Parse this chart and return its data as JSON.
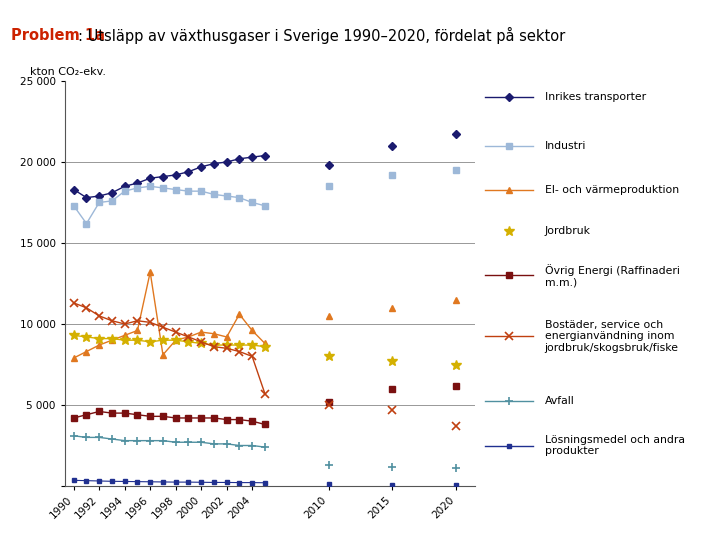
{
  "title_bold": "Problem 1a",
  "title_rest": ": Utsläpp av växthusgaser i Sverige 1990–2020, fördelat på sektor",
  "ylabel": "kton CO₂-ekv.",
  "ylim": [
    0,
    25000
  ],
  "yticks": [
    0,
    5000,
    10000,
    15000,
    20000,
    25000
  ],
  "hlines": [
    5000,
    10000,
    15000,
    20000
  ],
  "header_bg": "#dce9f5",
  "series": [
    {
      "name": "Inrikes transporter",
      "color": "#1a1a6e",
      "marker": "D",
      "markersize": 4,
      "linewidth": 1.0,
      "years_cont": [
        1990,
        1991,
        1992,
        1993,
        1994,
        1995,
        1996,
        1997,
        1998,
        1999,
        2000,
        2001,
        2002,
        2003,
        2004,
        2005
      ],
      "values_cont": [
        18300,
        17800,
        17900,
        18100,
        18500,
        18700,
        19000,
        19100,
        19200,
        19400,
        19700,
        19900,
        20000,
        20200,
        20300,
        20400
      ],
      "years_disc": [
        2010,
        2015,
        2020
      ],
      "values_disc": [
        19800,
        21000,
        21700
      ]
    },
    {
      "name": "Industri",
      "color": "#9db8d8",
      "marker": "s",
      "markersize": 4,
      "linewidth": 1.0,
      "years_cont": [
        1990,
        1991,
        1992,
        1993,
        1994,
        1995,
        1996,
        1997,
        1998,
        1999,
        2000,
        2001,
        2002,
        2003,
        2004,
        2005
      ],
      "values_cont": [
        17300,
        16200,
        17500,
        17600,
        18200,
        18400,
        18500,
        18400,
        18300,
        18200,
        18200,
        18000,
        17900,
        17800,
        17500,
        17300
      ],
      "years_disc": [
        2010,
        2015,
        2020
      ],
      "values_disc": [
        18500,
        19200,
        19500
      ]
    },
    {
      "name": "El- och värmeproduktion",
      "color": "#e07820",
      "marker": "^",
      "markersize": 5,
      "linewidth": 1.0,
      "years_cont": [
        1990,
        1991,
        1992,
        1993,
        1994,
        1995,
        1996,
        1997,
        1998,
        1999,
        2000,
        2001,
        2002,
        2003,
        2004,
        2005
      ],
      "values_cont": [
        7900,
        8300,
        8700,
        9000,
        9300,
        9600,
        13200,
        8100,
        9000,
        9200,
        9500,
        9400,
        9200,
        10600,
        9600,
        8800
      ],
      "years_disc": [
        2010,
        2015,
        2020
      ],
      "values_disc": [
        10500,
        11000,
        11500
      ]
    },
    {
      "name": "Jordbruk",
      "color": "#d4b000",
      "marker": "*",
      "markersize": 7,
      "linewidth": 1.0,
      "years_cont": [
        1990,
        1991,
        1992,
        1993,
        1994,
        1995,
        1996,
        1997,
        1998,
        1999,
        2000,
        2001,
        2002,
        2003,
        2004,
        2005
      ],
      "values_cont": [
        9300,
        9200,
        9100,
        9100,
        9000,
        9000,
        8900,
        9000,
        9000,
        8900,
        8800,
        8700,
        8700,
        8700,
        8700,
        8600
      ],
      "years_disc": [
        2010,
        2015,
        2020
      ],
      "values_disc": [
        8000,
        7700,
        7500
      ]
    },
    {
      "name": "Övrig Energi (Raffinaderi m.m.)",
      "color": "#7a1010",
      "marker": "s",
      "markersize": 4,
      "linewidth": 1.0,
      "years_cont": [
        1990,
        1991,
        1992,
        1993,
        1994,
        1995,
        1996,
        1997,
        1998,
        1999,
        2000,
        2001,
        2002,
        2003,
        2004,
        2005
      ],
      "values_cont": [
        4200,
        4400,
        4600,
        4500,
        4500,
        4400,
        4300,
        4300,
        4200,
        4200,
        4200,
        4200,
        4100,
        4100,
        4000,
        3800
      ],
      "years_disc": [
        2010,
        2015,
        2020
      ],
      "values_disc": [
        5200,
        6000,
        6200
      ]
    },
    {
      "name": "Bostäder, service och energianvändning inom jordbruk/skogsbruk/fiske",
      "color": "#c04010",
      "marker": "x",
      "markersize": 6,
      "linewidth": 1.0,
      "markeredgewidth": 1.2,
      "years_cont": [
        1990,
        1991,
        1992,
        1993,
        1994,
        1995,
        1996,
        1997,
        1998,
        1999,
        2000,
        2001,
        2002,
        2003,
        2004,
        2005
      ],
      "values_cont": [
        11300,
        11000,
        10500,
        10200,
        10000,
        10200,
        10100,
        9800,
        9500,
        9200,
        8900,
        8600,
        8500,
        8300,
        8000,
        5700
      ],
      "years_disc": [
        2010,
        2015,
        2020
      ],
      "values_disc": [
        5000,
        4700,
        3700
      ]
    },
    {
      "name": "Avfall",
      "color": "#5090a0",
      "marker": "+",
      "markersize": 6,
      "linewidth": 1.0,
      "markeredgewidth": 1.2,
      "years_cont": [
        1990,
        1991,
        1992,
        1993,
        1994,
        1995,
        1996,
        1997,
        1998,
        1999,
        2000,
        2001,
        2002,
        2003,
        2004,
        2005
      ],
      "values_cont": [
        3100,
        3000,
        3000,
        2900,
        2800,
        2800,
        2800,
        2800,
        2700,
        2700,
        2700,
        2600,
        2600,
        2500,
        2500,
        2400
      ],
      "years_disc": [
        2010,
        2015,
        2020
      ],
      "values_disc": [
        1300,
        1200,
        1100
      ]
    },
    {
      "name": "Lösningsmedel och andra produkter",
      "color": "#203090",
      "marker": "s",
      "markersize": 3,
      "linewidth": 0.8,
      "years_cont": [
        1990,
        1991,
        1992,
        1993,
        1994,
        1995,
        1996,
        1997,
        1998,
        1999,
        2000,
        2001,
        2002,
        2003,
        2004,
        2005
      ],
      "values_cont": [
        350,
        330,
        310,
        290,
        280,
        270,
        260,
        250,
        240,
        240,
        230,
        220,
        220,
        210,
        210,
        200
      ],
      "years_disc": [
        2010,
        2015,
        2020
      ],
      "values_disc": [
        100,
        90,
        80
      ]
    }
  ],
  "legend_entries": [
    {
      "name": "Inrikes transporter",
      "color": "#1a1a6e",
      "marker": "D",
      "markersize": 4,
      "lw": 1.0,
      "mew": 1.0
    },
    {
      "name": "Industri",
      "color": "#9db8d8",
      "marker": "s",
      "markersize": 4,
      "lw": 1.0,
      "mew": 1.0
    },
    {
      "name": "El- och värmeproduktion",
      "color": "#e07820",
      "marker": "^",
      "markersize": 5,
      "lw": 1.0,
      "mew": 1.0
    },
    {
      "name": "Jordbruk",
      "color": "#d4b000",
      "marker": "*",
      "markersize": 7,
      "lw": 0,
      "mew": 1.0
    },
    {
      "name": "Övrig Energi (Raffinaderi\nm.m.)",
      "color": "#7a1010",
      "marker": "s",
      "markersize": 4,
      "lw": 1.0,
      "mew": 1.0
    },
    {
      "name": "Bostäder, service och\nenergianvändning inom\njordbruk/skogsbruk/fiske",
      "color": "#c04010",
      "marker": "x",
      "markersize": 6,
      "lw": 1.0,
      "mew": 1.2
    },
    {
      "name": "Avfall",
      "color": "#5090a0",
      "marker": "+",
      "markersize": 6,
      "lw": 1.0,
      "mew": 1.2
    },
    {
      "name": "Lösningsmedel och andra\nprodukter",
      "color": "#203090",
      "marker": "s",
      "markersize": 3,
      "lw": 1.0,
      "mew": 1.0
    }
  ]
}
